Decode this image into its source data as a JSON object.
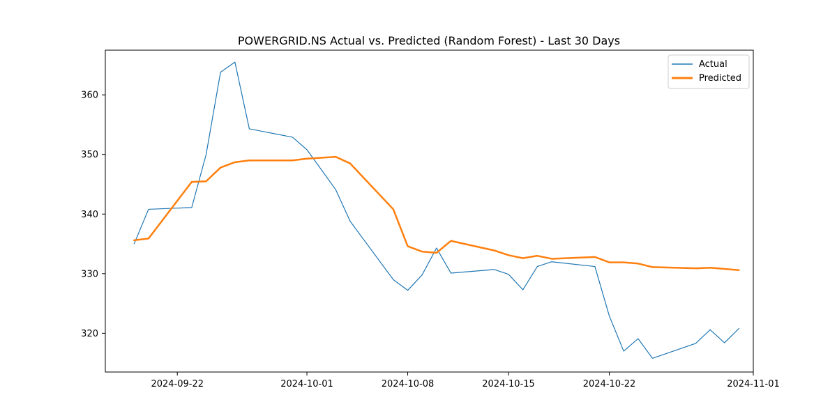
{
  "chart_data": {
    "type": "line",
    "title": "POWERGRID.NS Actual vs. Predicted (Random Forest) - Last 30 Days",
    "xlabel": "",
    "ylabel": "",
    "x_ticks": [
      "2024-09-22",
      "2024-10-01",
      "2024-10-08",
      "2024-10-15",
      "2024-10-22",
      "2024-11-01"
    ],
    "y_ticks": [
      320,
      330,
      340,
      350,
      360
    ],
    "xlim": [
      "2024-09-17",
      "2024-11-01"
    ],
    "ylim": [
      313.5,
      367.5
    ],
    "legend": {
      "position": "top-right",
      "entries": [
        "Actual",
        "Predicted"
      ]
    },
    "grid": false,
    "x": [
      "2024-09-19",
      "2024-09-20",
      "2024-09-23",
      "2024-09-24",
      "2024-09-25",
      "2024-09-26",
      "2024-09-27",
      "2024-09-30",
      "2024-10-01",
      "2024-10-03",
      "2024-10-04",
      "2024-10-07",
      "2024-10-08",
      "2024-10-09",
      "2024-10-10",
      "2024-10-11",
      "2024-10-14",
      "2024-10-15",
      "2024-10-16",
      "2024-10-17",
      "2024-10-18",
      "2024-10-21",
      "2024-10-22",
      "2024-10-23",
      "2024-10-24",
      "2024-10-25",
      "2024-10-28",
      "2024-10-29",
      "2024-10-30",
      "2024-10-31"
    ],
    "series": [
      {
        "name": "Actual",
        "color": "#1f77b4",
        "values": [
          335.0,
          340.8,
          341.1,
          350.0,
          363.8,
          365.5,
          354.3,
          352.9,
          350.8,
          344.1,
          338.8,
          329.0,
          327.2,
          329.8,
          334.3,
          330.1,
          330.7,
          329.9,
          327.3,
          331.2,
          332.0,
          331.2,
          322.9,
          317.0,
          319.1,
          315.8,
          318.3,
          320.6,
          318.4,
          320.8
        ]
      },
      {
        "name": "Predicted",
        "color": "#ff7f0e",
        "values": [
          335.6,
          335.9,
          345.4,
          345.5,
          347.8,
          348.7,
          349.0,
          349.0,
          349.3,
          349.6,
          348.5,
          340.8,
          334.6,
          333.7,
          333.5,
          335.5,
          333.9,
          333.1,
          332.6,
          333.0,
          332.5,
          332.8,
          331.9,
          331.9,
          331.7,
          331.1,
          330.9,
          331.0,
          330.8,
          330.6
        ]
      }
    ]
  }
}
